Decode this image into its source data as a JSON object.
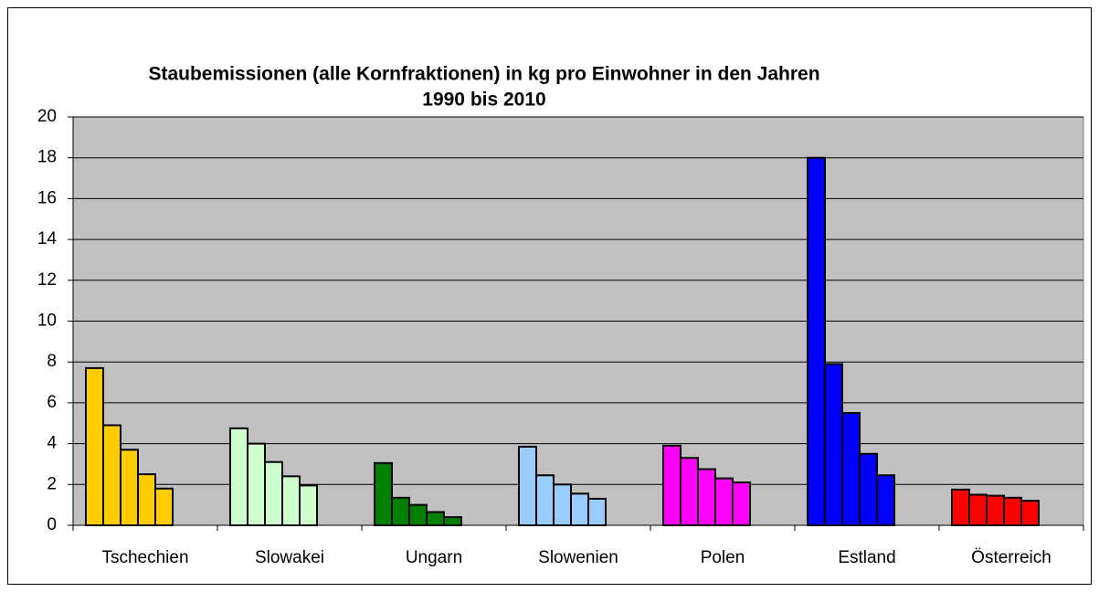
{
  "chart_data": {
    "type": "bar",
    "title": [
      "Staubemissionen (alle Kornfraktionen) in kg pro Einwohner in den Jahren",
      "1990 bis 2010"
    ],
    "categories": [
      "Tschechien",
      "Slowakei",
      "Ungarn",
      "Slowenien",
      "Polen",
      "Estland",
      "Österreich"
    ],
    "colors": [
      "#ffcc00",
      "#ccffcc",
      "#008000",
      "#99ccff",
      "#ff00ff",
      "#0000ff",
      "#ff0000"
    ],
    "series": [
      {
        "values": [
          7.7,
          4.75,
          3.05,
          3.85,
          3.9,
          18.0,
          1.75
        ]
      },
      {
        "values": [
          4.9,
          4.0,
          1.35,
          2.45,
          3.3,
          7.9,
          1.5
        ]
      },
      {
        "values": [
          3.7,
          3.1,
          1.0,
          2.0,
          2.75,
          5.5,
          1.45
        ]
      },
      {
        "values": [
          2.5,
          2.4,
          0.65,
          1.55,
          2.3,
          3.5,
          1.35
        ]
      },
      {
        "values": [
          1.8,
          1.95,
          0.4,
          1.3,
          2.1,
          2.45,
          1.2
        ]
      }
    ],
    "ylim": [
      0,
      20
    ],
    "yticks": [
      0,
      2,
      4,
      6,
      8,
      10,
      12,
      14,
      16,
      18,
      20
    ],
    "grid": true
  }
}
